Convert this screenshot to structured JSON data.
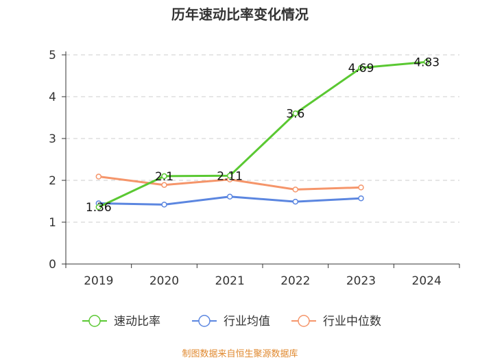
{
  "chart_data": {
    "type": "line",
    "title": "历年速动比率变化情况",
    "categories": [
      "2019",
      "2020",
      "2021",
      "2022",
      "2023",
      "2024"
    ],
    "ylim": [
      0,
      5
    ],
    "yticks": [
      0,
      1,
      2,
      3,
      4,
      5
    ],
    "grid": true,
    "legend_position": "bottom",
    "series": [
      {
        "name": "速动比率",
        "color": "#5ac832",
        "values": [
          1.36,
          2.1,
          2.11,
          3.6,
          4.69,
          4.83
        ],
        "labels": [
          "1.36",
          "2.1",
          "2.11",
          "3.6",
          "4.69",
          "4.83"
        ]
      },
      {
        "name": "行业均值",
        "color": "#5b86e0",
        "values": [
          1.45,
          1.42,
          1.61,
          1.49,
          1.57,
          null
        ]
      },
      {
        "name": "行业中位数",
        "color": "#f5956a",
        "values": [
          2.09,
          1.89,
          2.02,
          1.78,
          1.83,
          null
        ]
      }
    ],
    "source": "制图数据来自恒生聚源数据库"
  }
}
